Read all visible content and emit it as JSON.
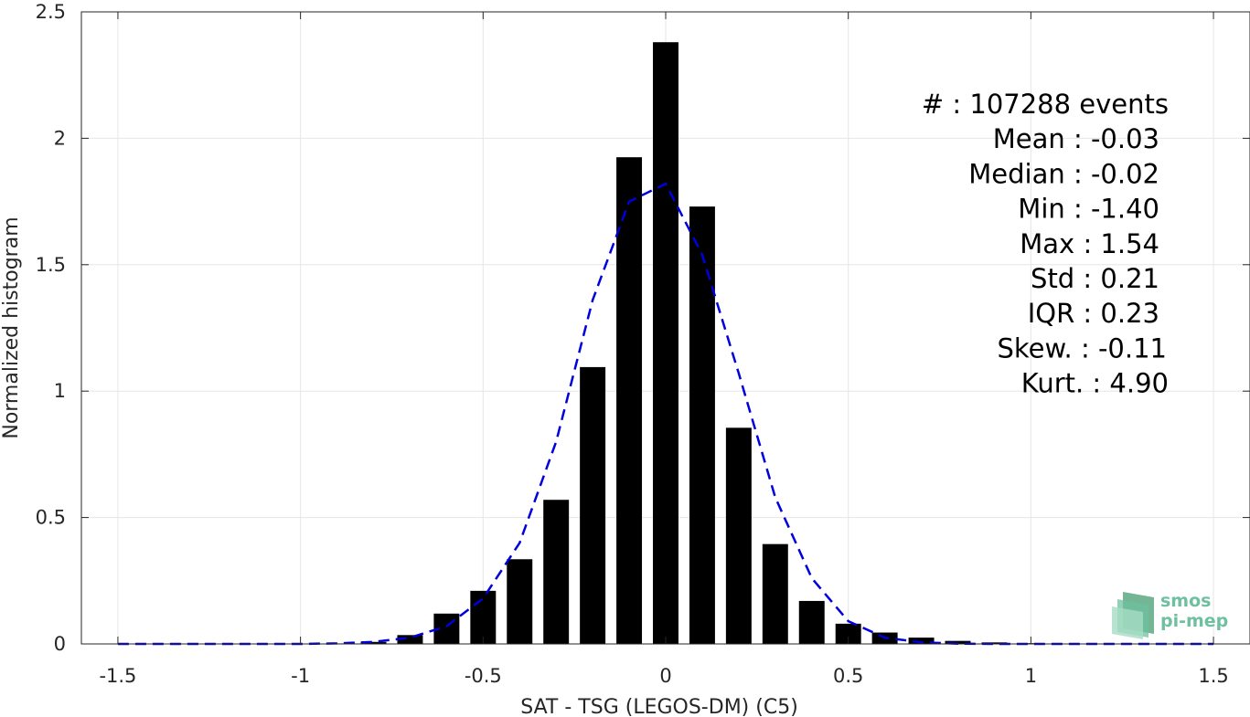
{
  "chart_data": {
    "type": "bar",
    "xlabel": "SAT - TSG (LEGOS-DM) (C5)",
    "ylabel": "Normalized histogram",
    "xlim": [
      -1.6,
      1.6
    ],
    "ylim": [
      0,
      2.5
    ],
    "xticks": [
      -1.5,
      -1,
      -0.5,
      0,
      0.5,
      1,
      1.5
    ],
    "xtick_labels": [
      "-1.5",
      "-1",
      "-0.5",
      "0",
      "0.5",
      "1",
      "1.5"
    ],
    "yticks": [
      0,
      0.5,
      1,
      1.5,
      2,
      2.5
    ],
    "ytick_labels": [
      "0",
      "0.5",
      "1",
      "1.5",
      "2",
      "2.5"
    ],
    "grid": true,
    "bar_width": 0.07,
    "bar_color": "#000000",
    "fit_color": "#0000dd",
    "bars": {
      "x": [
        -1.5,
        -1.4,
        -1.3,
        -1.2,
        -1.1,
        -1.0,
        -0.9,
        -0.8,
        -0.7,
        -0.6,
        -0.5,
        -0.4,
        -0.3,
        -0.2,
        -0.1,
        0.0,
        0.1,
        0.2,
        0.3,
        0.4,
        0.5,
        0.6,
        0.7,
        0.8,
        0.9,
        1.0,
        1.1,
        1.2,
        1.3,
        1.4,
        1.5
      ],
      "values": [
        0.0,
        0.0,
        0.0,
        0.0,
        0.0,
        0.0,
        0.002,
        0.008,
        0.035,
        0.12,
        0.21,
        0.335,
        0.57,
        1.095,
        1.925,
        2.38,
        1.73,
        0.855,
        0.395,
        0.17,
        0.08,
        0.045,
        0.025,
        0.012,
        0.006,
        0.003,
        0.001,
        0.0,
        0.0,
        0.0,
        0.0
      ]
    },
    "fit": {
      "x": [
        -1.5,
        -1.4,
        -1.3,
        -1.2,
        -1.1,
        -1.0,
        -0.9,
        -0.8,
        -0.7,
        -0.6,
        -0.5,
        -0.4,
        -0.3,
        -0.2,
        -0.1,
        0.0,
        0.1,
        0.2,
        0.3,
        0.4,
        0.5,
        0.6,
        0.7,
        0.8,
        0.9,
        1.0,
        1.1,
        1.2,
        1.3,
        1.4,
        1.5
      ],
      "values": [
        0.0,
        0.0,
        0.0,
        0.0,
        0.0,
        0.0,
        0.002,
        0.008,
        0.025,
        0.07,
        0.18,
        0.4,
        0.8,
        1.36,
        1.75,
        1.82,
        1.54,
        1.07,
        0.58,
        0.26,
        0.09,
        0.025,
        0.006,
        0.001,
        0.0,
        0.0,
        0.0,
        0.0,
        0.0,
        0.0,
        0.0
      ]
    },
    "stats": {
      "lines": [
        {
          "label": "#  ",
          "value": ": 107288 events"
        },
        {
          "label": "Mean ",
          "value": ": -0.03"
        },
        {
          "label": "Median ",
          "value": ": -0.02"
        },
        {
          "label": "Min ",
          "value": ": -1.40"
        },
        {
          "label": "Max ",
          "value": ": 1.54"
        },
        {
          "label": "Std ",
          "value": ": 0.21"
        },
        {
          "label": "IQR ",
          "value": ": 0.23"
        },
        {
          "label": "Skew. ",
          "value": ": -0.11"
        },
        {
          "label": "Kurt. ",
          "value": ": 4.90"
        }
      ]
    },
    "logo": {
      "line1": "smos",
      "line2": "pi-mep"
    }
  }
}
